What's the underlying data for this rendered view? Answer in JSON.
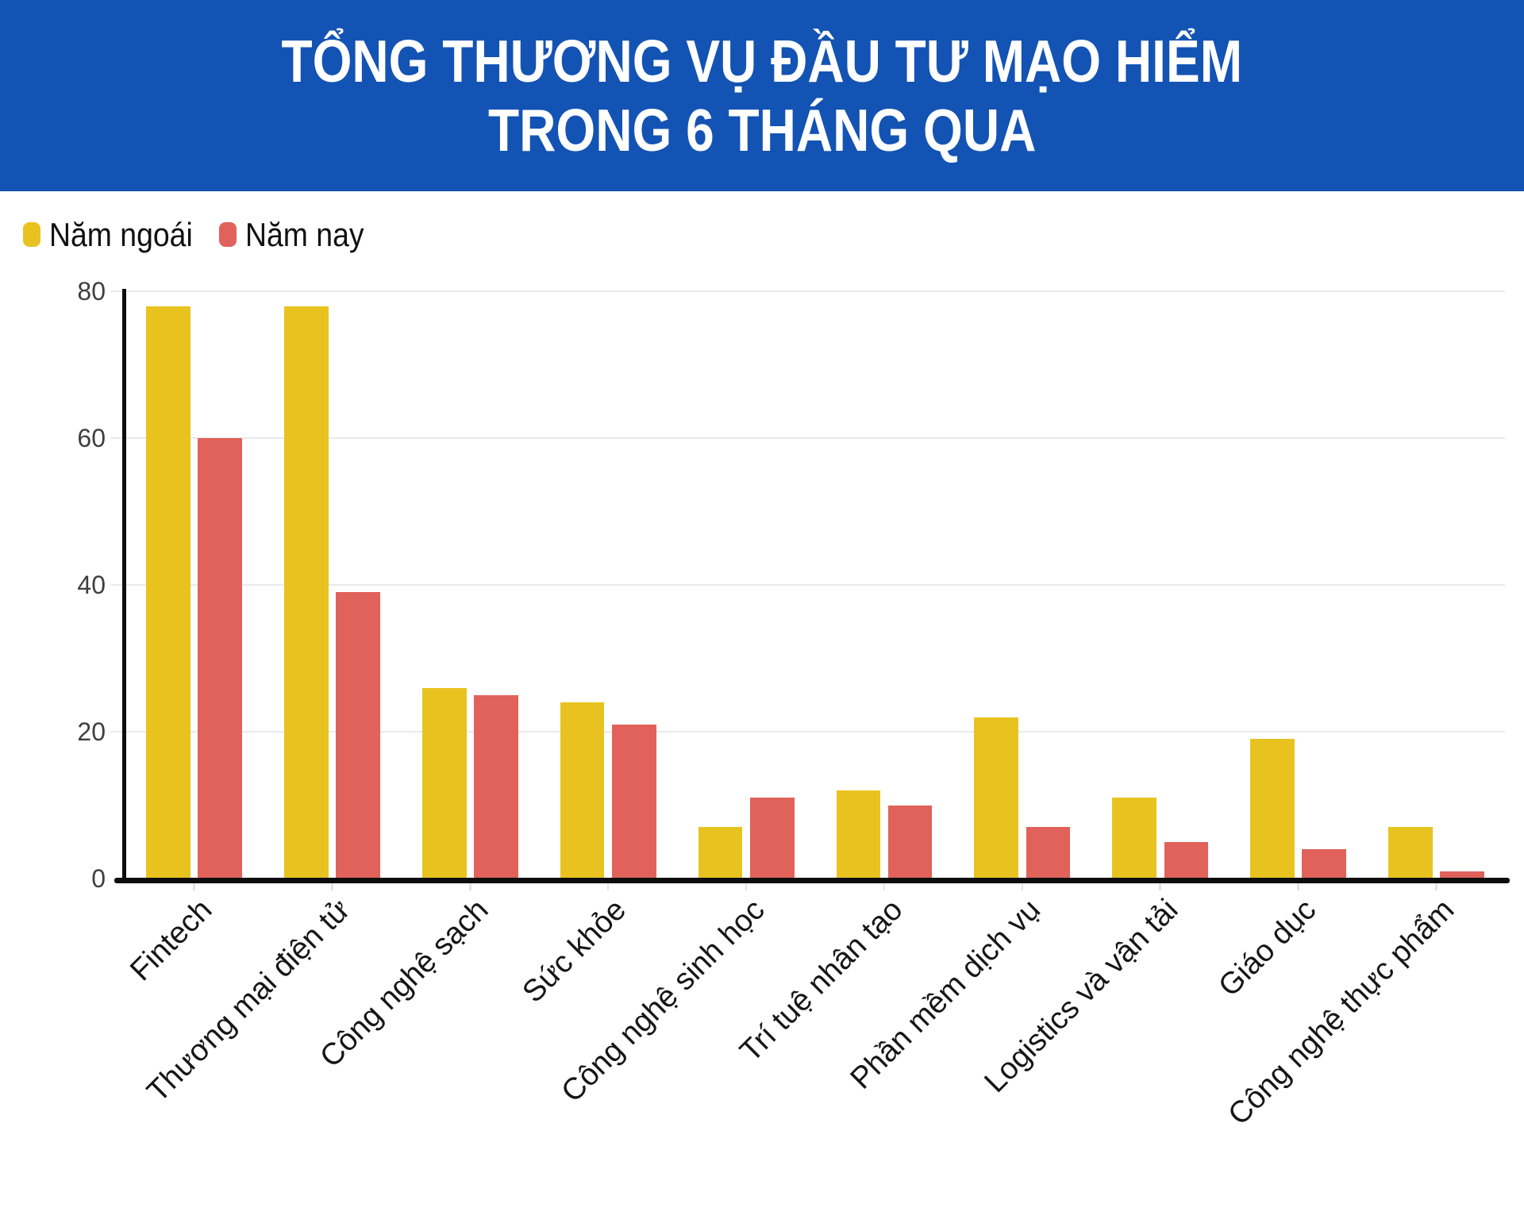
{
  "title": {
    "line1": "TỔNG THƯƠNG VỤ ĐẦU TƯ MẠO HIỂM",
    "line2": "TRONG 6 THÁNG QUA"
  },
  "legend": {
    "items": [
      {
        "label": "Năm ngoái",
        "color": "#e8c31f"
      },
      {
        "label": "Năm nay",
        "color": "#e0625a"
      }
    ]
  },
  "colors": {
    "banner": "#1353b4",
    "title_text": "#ffffff",
    "last_year": "#e8c31f",
    "this_year": "#e0625a",
    "grid": "#eaeaea",
    "axis": "#0d0d0d",
    "below_axis_tick": "#e3e3e3",
    "y_label_text": "#3f3f3f",
    "category_label_text": "#161616"
  },
  "chart_data": {
    "type": "bar",
    "title": "TỔNG THƯƠNG VỤ ĐẦU TƯ MẠO HIỂM TRONG 6 THÁNG QUA",
    "categories": [
      "Fintech",
      "Thương mại điện tử",
      "Công nghệ sạch",
      "Sức khỏe",
      "Công nghệ sinh học",
      "Trí tuệ nhân tạo",
      "Phần mềm dịch vụ",
      "Logistics và vận tải",
      "Giáo dục",
      "Công nghệ thực phẩm"
    ],
    "series": [
      {
        "name": "Năm ngoái",
        "color": "#e8c31f",
        "values": [
          78,
          78,
          26,
          24,
          7,
          12,
          22,
          11,
          19,
          7
        ]
      },
      {
        "name": "Năm nay",
        "color": "#e0625a",
        "values": [
          60,
          39,
          25,
          21,
          11,
          10,
          7,
          5,
          4,
          1
        ]
      }
    ],
    "xlabel": "",
    "ylabel": "",
    "ylim": [
      0,
      80
    ],
    "yticks": [
      0,
      20,
      40,
      60,
      80
    ],
    "grid": true,
    "legend_position": "top-left"
  }
}
